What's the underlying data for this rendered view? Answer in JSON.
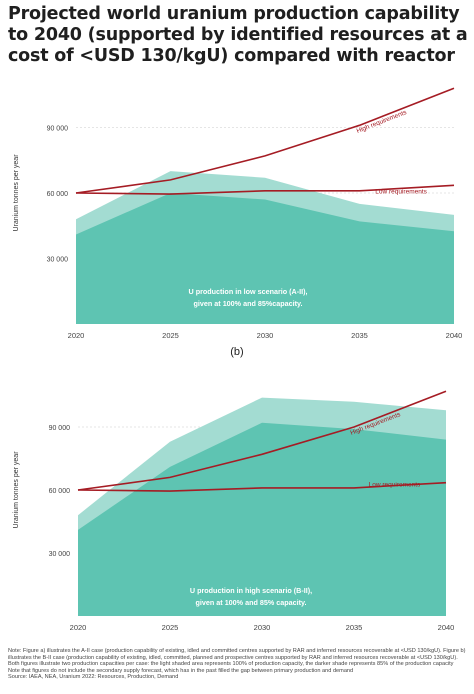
{
  "title": "Projected world uranium production capability to 2040 (supported by identified resources at a cost of <USD 130/kgU) compared with reactor",
  "panel_b_label": "(b)",
  "notes": [
    "Note: Figure a) illustrates the A-II case (production capability of existing, idled and committed centres supported by RAR and inferred resources recoverable at <USD 130/kgU). Figure b) illustrates the B-II case (production capability of existing, idled, committed, planned and prospective centres supported by RAR and inferred resources recoverable at <USD 130/kgU). Both figures illustrate two production capacities per case: the light shaded area represents 100% of production capacity, the darker shade represents 85% of the production capacity",
    "Note that figures do not include the secondary supply forecast, which has in the past filled the gap between primary production and demand",
    "Source: IAEA, NEA, Uranium 2022: Resources, Production, Demand"
  ],
  "colors": {
    "light_area": "#a3dcd2",
    "dark_area": "#5ec4b2",
    "line": "#a51c24",
    "grid": "#cccccc"
  },
  "chart_data": [
    {
      "type": "area",
      "x": [
        2020,
        2025,
        2030,
        2035,
        2040
      ],
      "xlim": [
        2020,
        2040
      ],
      "ylim": [
        0,
        120000
      ],
      "yticks": [
        {
          "value": 30000,
          "label": "30 000"
        },
        {
          "value": 60000,
          "label": "60 000"
        },
        {
          "value": 90000,
          "label": "90 000"
        }
      ],
      "xticks": [
        "2020",
        "2025",
        "2030",
        "2035",
        "2040"
      ],
      "ylabel": "Uranium tonnes per year",
      "areas": [
        {
          "level": "100%",
          "values": [
            48000,
            70000,
            67000,
            55000,
            50000
          ]
        },
        {
          "level": "85%",
          "values": [
            41000,
            60000,
            57000,
            47000,
            42500
          ]
        }
      ],
      "lines": [
        {
          "name": "High requirements",
          "values": [
            60000,
            66000,
            77000,
            91000,
            108000
          ]
        },
        {
          "name": "Low requirements",
          "values": [
            60000,
            59500,
            61000,
            61000,
            63500
          ]
        }
      ],
      "annotation": [
        "U production in low scenario (A-II),",
        "given at 100% and 85%capacity."
      ]
    },
    {
      "type": "area",
      "x": [
        2020,
        2025,
        2030,
        2035,
        2040
      ],
      "xlim": [
        2020,
        2040
      ],
      "ylim": [
        0,
        120000
      ],
      "yticks": [
        {
          "value": 30000,
          "label": "30 000"
        },
        {
          "value": 60000,
          "label": "60 000"
        },
        {
          "value": 90000,
          "label": "90 000"
        }
      ],
      "xticks": [
        "2020",
        "2025",
        "2030",
        "2035",
        "2040"
      ],
      "ylabel": "Uranium tonnes per year",
      "areas": [
        {
          "level": "100%",
          "values": [
            48000,
            83000,
            104000,
            102000,
            98000
          ]
        },
        {
          "level": "85%",
          "values": [
            41000,
            71000,
            92000,
            89000,
            84000
          ]
        }
      ],
      "lines": [
        {
          "name": "High requirements",
          "values": [
            60000,
            66000,
            77000,
            90000,
            107000
          ]
        },
        {
          "name": "Low requirements",
          "values": [
            60000,
            59500,
            61000,
            61000,
            63500
          ]
        }
      ],
      "annotation": [
        "U production in high scenario (B-II),",
        "given at 100% and 85% capacity."
      ]
    }
  ]
}
